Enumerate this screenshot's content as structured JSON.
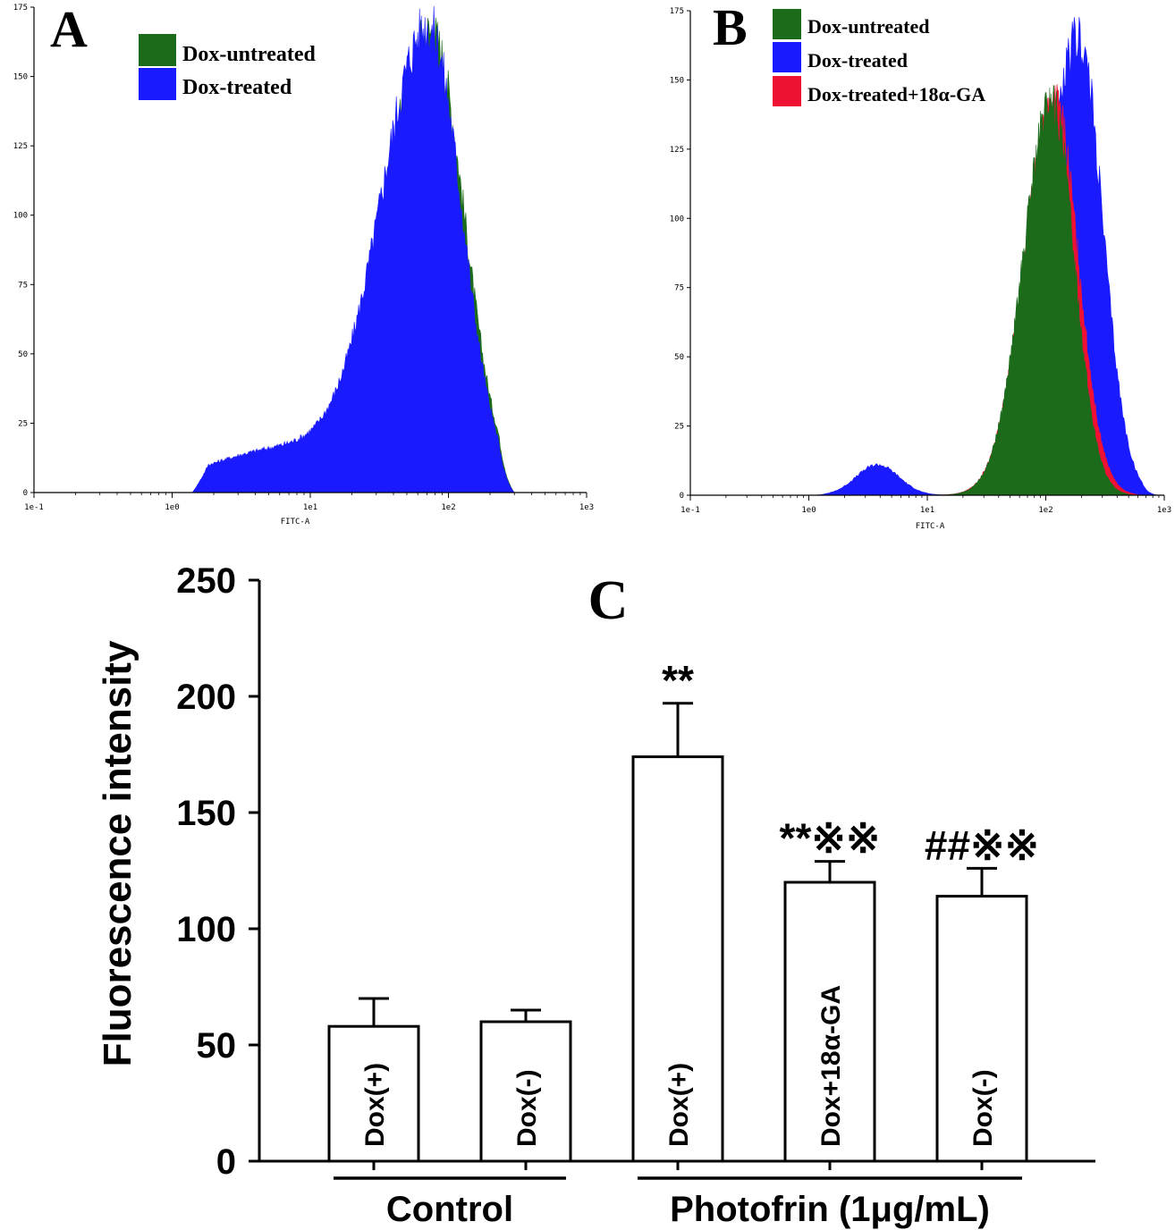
{
  "chart_data": [
    {
      "panel_label": "A",
      "type": "area",
      "xlabel": "FITC-A",
      "x_scale": "log",
      "xlim": [
        0.1,
        1000
      ],
      "x_ticks": [
        "1e-1",
        "1e0",
        "1e1",
        "1e2",
        "1e3"
      ],
      "ylim": [
        0,
        175
      ],
      "y_ticks": [
        "0",
        "25",
        "50",
        "75",
        "100",
        "125",
        "150",
        "175"
      ],
      "legend": "top-left",
      "series": [
        {
          "name": "Dox-untreated",
          "color": "#1b6b1b",
          "peak_x": 75,
          "peak_y": 162,
          "log_sigma_left": 0.33,
          "log_sigma_right": 0.24,
          "shoulder_x": 8,
          "shoulder_y": 14,
          "log_sigma_shoulder": 0.6,
          "x_min": 1.5,
          "x_max": 300
        },
        {
          "name": "Dox-treated",
          "color": "#1a1aff",
          "peak_x": 72,
          "peak_y": 164,
          "log_sigma_left": 0.34,
          "log_sigma_right": 0.24,
          "shoulder_x": 7,
          "shoulder_y": 16,
          "log_sigma_shoulder": 0.6,
          "x_min": 1.4,
          "x_max": 300
        }
      ]
    },
    {
      "panel_label": "B",
      "type": "area",
      "xlabel": "FITC-A",
      "x_scale": "log",
      "xlim": [
        0.1,
        1000
      ],
      "x_ticks": [
        "1e-1",
        "1e0",
        "1e1",
        "1e2",
        "1e3"
      ],
      "ylim": [
        0,
        175
      ],
      "y_ticks": [
        "0",
        "25",
        "50",
        "75",
        "100",
        "125",
        "150",
        "175"
      ],
      "legend": "top-left",
      "series": [
        {
          "name": "Dox-treated",
          "color": "#1a1aff",
          "peak_x": 190,
          "peak_y": 165,
          "log_sigma_left": 0.27,
          "log_sigma_right": 0.2,
          "shoulder_x": 3.8,
          "shoulder_y": 11,
          "log_sigma_shoulder": 0.18,
          "x_min": 1.0,
          "x_max": 900
        },
        {
          "name": "Dox-treated+18α-GA",
          "color": "#ee1133",
          "peak_x": 118,
          "peak_y": 142,
          "log_sigma_left": 0.25,
          "log_sigma_right": 0.2,
          "shoulder_x": 4,
          "shoulder_y": 0,
          "log_sigma_shoulder": 0.2,
          "x_min": 8,
          "x_max": 700
        },
        {
          "name": "Dox-untreated",
          "color": "#1b6b1b",
          "peak_x": 112,
          "peak_y": 142,
          "log_sigma_left": 0.24,
          "log_sigma_right": 0.19,
          "shoulder_x": 4,
          "shoulder_y": 0,
          "log_sigma_shoulder": 0.2,
          "x_min": 8,
          "x_max": 600
        }
      ]
    },
    {
      "panel_label": "C",
      "type": "bar",
      "ylabel": "Fluorescence intensity",
      "ylim": [
        0,
        250
      ],
      "y_ticks": [
        "0",
        "50",
        "100",
        "150",
        "200",
        "250"
      ],
      "categories": [
        "Dox(+)",
        "Dox(-)",
        "Dox(+)",
        "Dox+18α-GA",
        "Dox(-)"
      ],
      "values": [
        58,
        60,
        174,
        120,
        114
      ],
      "errors": [
        12,
        5,
        23,
        9,
        12
      ],
      "annotations": [
        "",
        "",
        "**",
        "**※※",
        "##※※"
      ],
      "groups": [
        {
          "label": "Control",
          "bars": [
            0,
            1
          ]
        },
        {
          "label": "Photofrin (1μg/mL)",
          "bars": [
            2,
            3,
            4
          ]
        }
      ]
    }
  ]
}
